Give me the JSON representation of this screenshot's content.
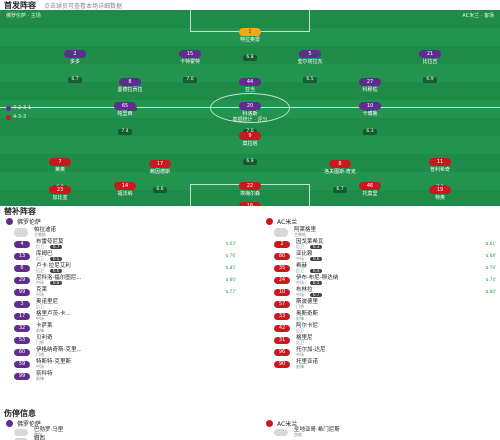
{
  "header": {
    "title": "首发阵容",
    "subtitle": "点击球员可查看本场详细数据"
  },
  "pitch": {
    "home_label": "佛罗伦萨 · 主场",
    "away_label": "AC米兰 · 客场",
    "home_formation": "4-2-3-1",
    "away_formation": "4-3-3",
    "center_text": "数据统计 · 评分",
    "home_color": "#5e2d8f",
    "away_color": "#c9181e"
  },
  "home_players": [
    {
      "num": "1",
      "name": "特拉奥雷",
      "rating": "6.8",
      "gk": true
    },
    {
      "num": "2",
      "name": "多多",
      "rating": "6.7"
    },
    {
      "num": "15",
      "name": "卡特霍特",
      "rating": "7.0"
    },
    {
      "num": "5",
      "name": "奎尔塔拉瓦",
      "rating": "6.5"
    },
    {
      "num": "21",
      "name": "比拉吉",
      "rating": "6.9"
    },
    {
      "num": "8",
      "name": "曼德拉贡拉",
      "rating": "6.6"
    },
    {
      "num": "44",
      "name": "亚当",
      "rating": "7.1"
    },
    {
      "num": "27",
      "name": "科穆佐",
      "rating": "6.4"
    },
    {
      "num": "65",
      "name": "帕里西",
      "rating": "7.4"
    },
    {
      "num": "20",
      "name": "科洛斯",
      "rating": "7.0"
    },
    {
      "num": "10",
      "name": "卡博鲁",
      "rating": "6.3"
    }
  ],
  "away_players": [
    {
      "num": "9",
      "name": "莫拉塔",
      "rating": "6.9"
    },
    {
      "num": "7",
      "name": "莱奥",
      "rating": "6.8"
    },
    {
      "num": "11",
      "name": "普利希奇",
      "rating": "7.2"
    },
    {
      "num": "17",
      "name": "赖因德斯",
      "rating": "6.6"
    },
    {
      "num": "8",
      "name": "洛夫图斯-奇克",
      "rating": "6.7"
    },
    {
      "num": "14",
      "name": "福法纳",
      "rating": "6.5"
    },
    {
      "num": "22",
      "name": "埃梅尔森",
      "rating": "6.4"
    },
    {
      "num": "46",
      "name": "托莫里",
      "rating": "6.8"
    },
    {
      "num": "23",
      "name": "加比亚",
      "rating": "6.9"
    },
    {
      "num": "19",
      "name": "特奥",
      "rating": "6.6"
    },
    {
      "num": "16",
      "name": "迈尼昂",
      "rating": "7.0"
    }
  ],
  "subs": {
    "title": "替补阵容",
    "home_team": "佛罗伦萨",
    "away_team": "AC米兰",
    "home_list": [
      {
        "num": "",
        "name": "帕拉迪诺",
        "pos": "主教练",
        "rating": ""
      },
      {
        "num": "4",
        "name": "布雷夸尼莫",
        "pos": "后卫",
        "rating": "6.7",
        "event": "63'"
      },
      {
        "num": "13",
        "name": "库姆巴",
        "pos": "后卫",
        "rating": "6.5",
        "event": "76'"
      },
      {
        "num": "6",
        "name": "卢卡·拉尼艾利",
        "pos": "后卫",
        "rating": "6.6",
        "event": "85'"
      },
      {
        "num": "29",
        "name": "尼科洛·福尔图尼...",
        "pos": "中场",
        "rating": "6.8",
        "event": "80'"
      },
      {
        "num": "99",
        "name": "克莱",
        "pos": "中场",
        "rating": "",
        "event": "77'"
      },
      {
        "num": "3",
        "name": "奥诺里尼",
        "pos": "后卫",
        "rating": ""
      },
      {
        "num": "17",
        "name": "格里卢茨-卡...",
        "pos": "中场",
        "rating": ""
      },
      {
        "num": "32",
        "name": "卡萨莱",
        "pos": "前锋",
        "rating": ""
      },
      {
        "num": "53",
        "name": "贝利奇",
        "pos": "门将",
        "rating": ""
      },
      {
        "num": "60",
        "name": "伊格纳奇斯-克里...",
        "pos": "门将",
        "rating": ""
      },
      {
        "num": "59",
        "name": "特斯特-克里斯",
        "pos": "中场",
        "rating": ""
      },
      {
        "num": "99",
        "name": "奈科特",
        "pos": "前锋",
        "rating": ""
      }
    ],
    "away_list": [
      {
        "num": "",
        "name": "阿莱格里",
        "pos": "主教练",
        "rating": ""
      },
      {
        "num": "2",
        "name": "因戈莱希瓦",
        "pos": "后卫",
        "rating": "6.3",
        "event": "61'"
      },
      {
        "num": "80",
        "name": "亚比赖",
        "pos": "中场",
        "rating": "6.6",
        "event": "68'"
      },
      {
        "num": "35",
        "name": "希赫",
        "pos": "后卫",
        "rating": "6.4",
        "event": "79'"
      },
      {
        "num": "24",
        "name": "伊布·布尼-穆达纳",
        "pos": "中场",
        "rating": "6.5",
        "event": "74'"
      },
      {
        "num": "10",
        "name": "布林拉",
        "pos": "中场",
        "rating": "6.7",
        "event": "80'"
      },
      {
        "num": "57",
        "name": "斯波德里",
        "pos": "门将",
        "rating": ""
      },
      {
        "num": "33",
        "name": "奥斯奇斯",
        "pos": "前锋",
        "rating": ""
      },
      {
        "num": "42",
        "name": "阿尔卡尼",
        "pos": "后卫",
        "rating": ""
      },
      {
        "num": "31",
        "name": "格里尼",
        "pos": "后卫",
        "rating": ""
      },
      {
        "num": "96",
        "name": "托尔加-达尼",
        "pos": "中场",
        "rating": ""
      },
      {
        "num": "90",
        "name": "托里亚诺",
        "pos": "前锋",
        "rating": ""
      }
    ]
  },
  "coaches": {
    "title": "伤停信息",
    "home_team": "佛罗伦萨",
    "away_team": "AC米兰",
    "home_list": [
      {
        "num": "",
        "name": "巴勃罗·马里",
        "pos": "膝伤"
      },
      {
        "num": "",
        "name": "姆西",
        "pos": "停赛"
      }
    ],
    "away_list": [
      {
        "num": "",
        "name": "圣地亚哥·希门尼斯",
        "pos": "伤病"
      }
    ]
  }
}
